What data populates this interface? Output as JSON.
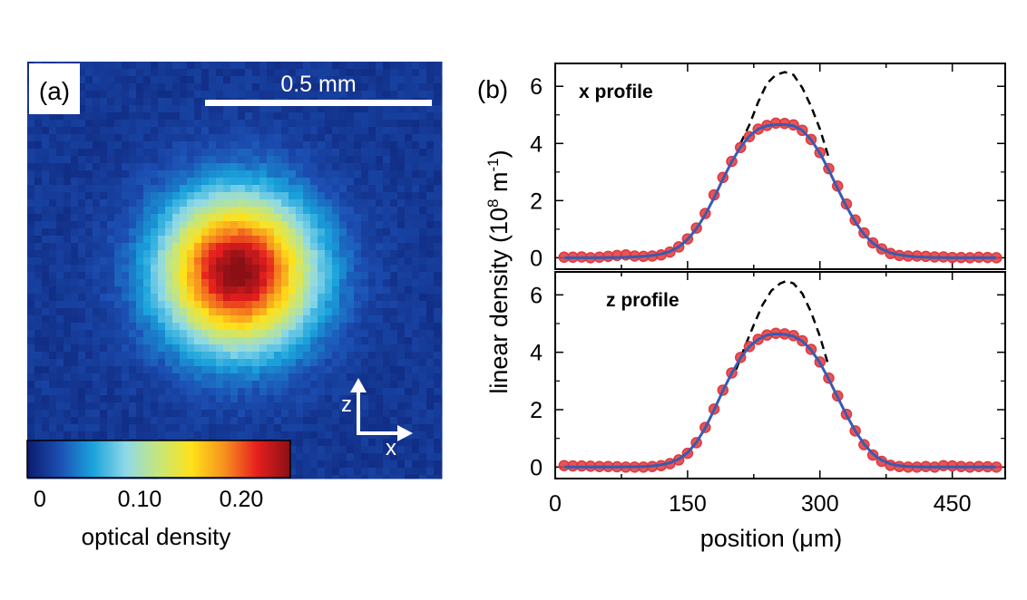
{
  "panel_a": {
    "label": "(a)",
    "scale_bar_label": "0.5 mm",
    "axis_z": "z",
    "axis_x": "x",
    "colorbar": {
      "ticks": [
        "0",
        "0.10",
        "0.20"
      ],
      "tick_values": [
        0,
        0.1,
        0.2
      ],
      "range": [
        -0.015,
        0.235
      ],
      "label": "optical density",
      "colors": [
        "#0b1b6d",
        "#1c4fb3",
        "#1aa3dc",
        "#8ed9e8",
        "#c7e67a",
        "#ffe21a",
        "#f7901e",
        "#e61e1e",
        "#8a1016"
      ]
    },
    "background_color": "#1747a6"
  },
  "panel_b": {
    "label": "(b)",
    "ylabel": "linear density (10",
    "ylabel_exp": "8",
    "ylabel_unit": " m",
    "ylabel_unit_exp": "-1",
    "ylabel_close": ")",
    "xlabel_main": "position (",
    "xlabel_mu": "μ",
    "xlabel_unit": "m)",
    "marker_color": "#e0383c",
    "fit_color": "#3a5bb0",
    "dashed_color": "#000000"
  },
  "chart_data": [
    {
      "type": "line",
      "name": "x profile",
      "title": "x profile",
      "xlabel": "position (μm)",
      "ylabel": "linear density (10^8 m^-1)",
      "xlim": [
        0,
        510
      ],
      "ylim": [
        -0.4,
        6.8
      ],
      "xticks": [
        0,
        150,
        300,
        450
      ],
      "yticks": [
        0,
        2,
        4,
        6
      ],
      "grid": false,
      "x": [
        10,
        20,
        30,
        40,
        50,
        60,
        70,
        80,
        90,
        100,
        110,
        120,
        130,
        140,
        150,
        160,
        170,
        180,
        190,
        200,
        210,
        220,
        230,
        240,
        250,
        260,
        270,
        280,
        290,
        300,
        310,
        320,
        330,
        340,
        350,
        360,
        370,
        380,
        390,
        400,
        410,
        420,
        430,
        440,
        450,
        460,
        470,
        480,
        490,
        500
      ],
      "series": [
        {
          "name": "data",
          "style": "markers",
          "values": [
            0.02,
            0.02,
            0.03,
            0.0,
            0.02,
            0.05,
            0.08,
            0.1,
            0.06,
            0.05,
            0.06,
            0.1,
            0.2,
            0.38,
            0.66,
            1.04,
            1.55,
            2.2,
            2.81,
            3.37,
            3.86,
            4.24,
            4.5,
            4.63,
            4.71,
            4.7,
            4.65,
            4.46,
            4.14,
            3.68,
            3.12,
            2.51,
            1.88,
            1.32,
            0.87,
            0.52,
            0.31,
            0.15,
            0.08,
            0.06,
            0.06,
            0.05,
            0.03,
            0.03,
            0.01,
            0.01,
            0.0,
            0.02,
            0.01,
            0.0
          ]
        },
        {
          "name": "fit",
          "style": "solid",
          "values": [
            0.0,
            0.0,
            0.0,
            0.0,
            0.0,
            0.01,
            0.01,
            0.02,
            0.03,
            0.05,
            0.08,
            0.13,
            0.22,
            0.38,
            0.64,
            1.01,
            1.5,
            2.1,
            2.75,
            3.36,
            3.87,
            4.26,
            4.5,
            4.62,
            4.66,
            4.66,
            4.62,
            4.46,
            4.13,
            3.66,
            3.07,
            2.43,
            1.8,
            1.25,
            0.82,
            0.51,
            0.3,
            0.17,
            0.1,
            0.06,
            0.03,
            0.02,
            0.01,
            0.01,
            0.0,
            0.0,
            0.0,
            0.0,
            0.0,
            0.0
          ]
        },
        {
          "name": "dashed",
          "style": "dashed",
          "x": [
            210,
            220,
            230,
            240,
            250,
            260,
            270,
            280,
            290,
            300,
            310
          ],
          "values": [
            4.0,
            4.65,
            5.45,
            6.1,
            6.4,
            6.5,
            6.4,
            5.95,
            5.3,
            4.5,
            3.5
          ]
        }
      ]
    },
    {
      "type": "line",
      "name": "z profile",
      "title": "z profile",
      "xlabel": "position (μm)",
      "ylabel": "linear density (10^8 m^-1)",
      "xlim": [
        0,
        510
      ],
      "ylim": [
        -0.4,
        6.8
      ],
      "xticks": [
        0,
        150,
        300,
        450
      ],
      "yticks": [
        0,
        2,
        4,
        6
      ],
      "grid": false,
      "x": [
        10,
        20,
        30,
        40,
        50,
        60,
        70,
        80,
        90,
        100,
        110,
        120,
        130,
        140,
        150,
        160,
        170,
        180,
        190,
        200,
        210,
        220,
        230,
        240,
        250,
        260,
        270,
        280,
        290,
        300,
        310,
        320,
        330,
        340,
        350,
        360,
        370,
        380,
        390,
        400,
        410,
        420,
        430,
        440,
        450,
        460,
        470,
        480,
        490,
        500
      ],
      "series": [
        {
          "name": "data",
          "style": "markers",
          "values": [
            0.05,
            0.04,
            0.04,
            0.03,
            0.02,
            0.02,
            0.01,
            0.0,
            0.0,
            0.0,
            0.02,
            0.05,
            0.12,
            0.25,
            0.48,
            0.85,
            1.38,
            2.02,
            2.68,
            3.28,
            3.82,
            4.2,
            4.45,
            4.6,
            4.66,
            4.64,
            4.58,
            4.4,
            4.1,
            3.66,
            3.1,
            2.48,
            1.84,
            1.26,
            0.78,
            0.42,
            0.2,
            0.06,
            0.02,
            0.0,
            0.0,
            0.02,
            0.0,
            0.05,
            0.04,
            0.02,
            0.0,
            0.02,
            0.01,
            0.0
          ]
        },
        {
          "name": "fit",
          "style": "solid",
          "values": [
            0.0,
            0.0,
            0.0,
            0.0,
            0.0,
            0.0,
            0.0,
            0.01,
            0.01,
            0.02,
            0.04,
            0.08,
            0.15,
            0.28,
            0.5,
            0.86,
            1.36,
            1.99,
            2.66,
            3.27,
            3.8,
            4.2,
            4.45,
            4.6,
            4.64,
            4.62,
            4.56,
            4.39,
            4.08,
            3.63,
            3.06,
            2.44,
            1.82,
            1.26,
            0.8,
            0.46,
            0.24,
            0.11,
            0.05,
            0.02,
            0.01,
            0.0,
            0.0,
            0.0,
            0.0,
            0.0,
            0.0,
            0.0,
            0.0,
            0.0
          ]
        },
        {
          "name": "dashed",
          "style": "dashed",
          "x": [
            205,
            215,
            225,
            235,
            245,
            255,
            262,
            270,
            280,
            290,
            300,
            310
          ],
          "values": [
            3.4,
            4.2,
            4.95,
            5.65,
            6.15,
            6.4,
            6.48,
            6.4,
            6.05,
            5.4,
            4.55,
            3.5
          ]
        }
      ]
    }
  ]
}
